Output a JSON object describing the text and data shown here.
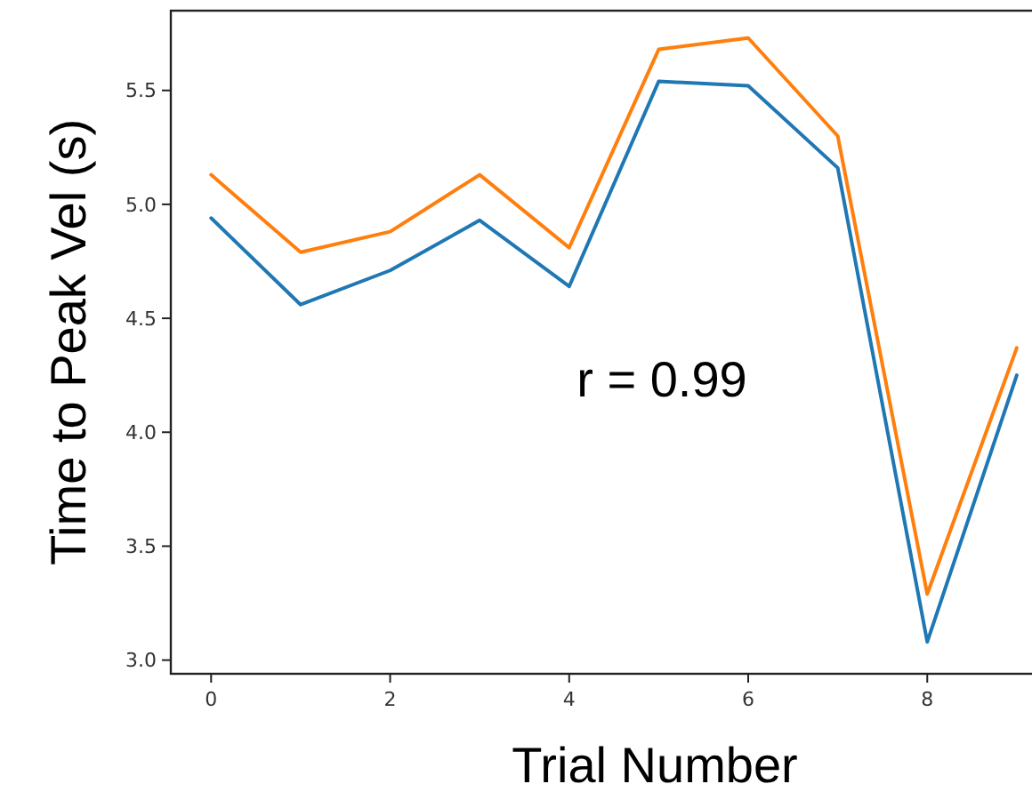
{
  "chart_data": {
    "type": "line",
    "xlabel": "Trial Number",
    "ylabel": "Time to Peak Vel (s)",
    "x": [
      0,
      1,
      2,
      3,
      4,
      5,
      6,
      7,
      8,
      9
    ],
    "series": [
      {
        "color": "#1f77b4",
        "values": [
          4.94,
          4.56,
          4.71,
          4.93,
          4.64,
          5.54,
          5.52,
          5.16,
          3.08,
          4.25
        ]
      },
      {
        "color": "#ff7f0e",
        "values": [
          5.13,
          4.79,
          4.88,
          5.13,
          4.81,
          5.68,
          5.73,
          5.3,
          3.29,
          4.37
        ]
      }
    ],
    "xlim": [
      -0.45,
      9.17
    ],
    "ylim": [
      2.94,
      5.85
    ],
    "xticks": [
      0,
      2,
      4,
      6,
      8
    ],
    "yticks": [
      {
        "value": 3,
        "label": "3.0"
      },
      {
        "value": 3.5,
        "label": "3.5"
      },
      {
        "value": 4,
        "label": "4.0"
      },
      {
        "value": 4.5,
        "label": "4.5"
      },
      {
        "value": 5,
        "label": "5.0"
      },
      {
        "value": 5.5,
        "label": "5.5"
      }
    ],
    "annotations": [
      "r = 0.99"
    ],
    "grid": false,
    "marker": "none",
    "line_style": "solid"
  }
}
